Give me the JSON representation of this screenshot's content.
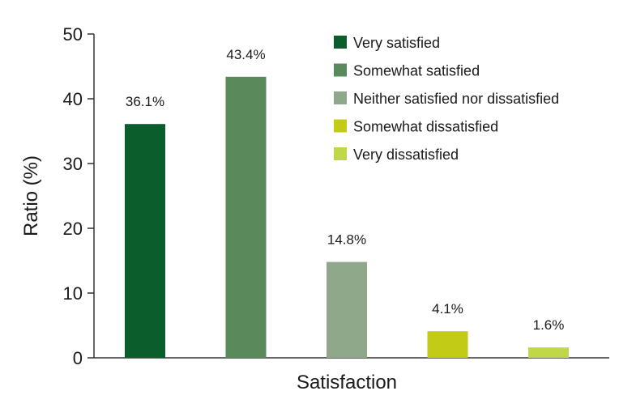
{
  "chart_data": {
    "type": "bar",
    "title": "",
    "xlabel": "Satisfaction",
    "ylabel": "Ratio (%)",
    "ylim": [
      0,
      50
    ],
    "yticks": [
      0,
      10,
      20,
      30,
      40,
      50
    ],
    "grid": false,
    "legend_position": "top-right",
    "categories": [
      "Very satisfied",
      "Somewhat satisfied",
      "Neither satisfied nor dissatisfied",
      "Somewhat dissatisfied",
      "Very dissatisfied"
    ],
    "values": [
      36.1,
      43.4,
      14.8,
      4.1,
      1.6
    ],
    "data_labels": [
      "36.1%",
      "43.4%",
      "14.8%",
      "4.1%",
      "1.6%"
    ],
    "colors": [
      "#0b5e2c",
      "#5a8a5c",
      "#8fa889",
      "#c2cc16",
      "#bfd84a"
    ]
  }
}
